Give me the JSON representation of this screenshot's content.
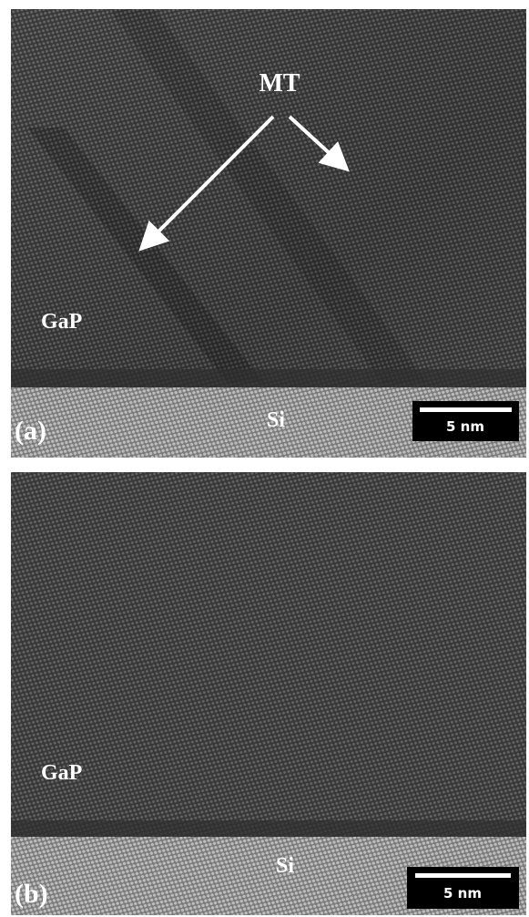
{
  "panels": [
    {
      "label": "(a)",
      "annotation": "MT",
      "layer_top": "GaP",
      "layer_bottom": "Si",
      "scale_bar": "5 nm"
    },
    {
      "label": "(b)",
      "layer_top": "GaP",
      "layer_bottom": "Si",
      "scale_bar": "5 nm"
    }
  ]
}
